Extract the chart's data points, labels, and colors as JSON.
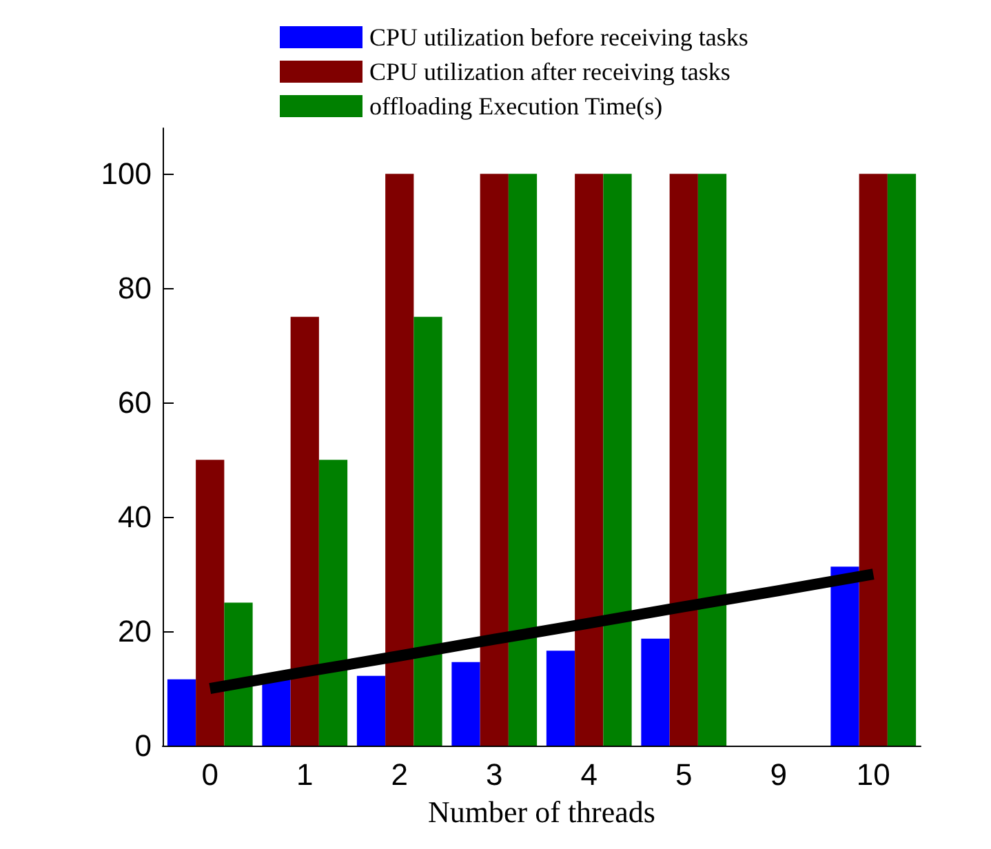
{
  "chart_data": {
    "type": "bar",
    "xlabel": "Number of threads",
    "categories": [
      "0",
      "1",
      "2",
      "3",
      "4",
      "5",
      "9",
      "10"
    ],
    "series": [
      {
        "name": "CPU utilization before receiving tasks",
        "color": "#0000ff",
        "values": [
          11.6,
          11.5,
          12.2,
          14.6,
          16.6,
          18.7,
          null,
          31.3
        ]
      },
      {
        "name": "CPU utilization after receiving tasks",
        "color": "#800000",
        "values": [
          50,
          75,
          100,
          100,
          100,
          100,
          null,
          100
        ]
      },
      {
        "name": "offloading Execution Time(s)",
        "color": "#008000",
        "values": [
          25,
          50,
          75,
          100,
          100,
          100,
          null,
          100
        ]
      },
      {
        "type": "line",
        "color": "#000000",
        "values": [
          10,
          12.9,
          15.7,
          18.6,
          21.4,
          24.3,
          27.1,
          30
        ]
      }
    ],
    "ylim": [
      0,
      108
    ],
    "yticks": [
      0,
      20,
      40,
      60,
      80,
      100
    ],
    "grid": false,
    "legend": "top",
    "marker": "none",
    "line_style": "solid"
  }
}
